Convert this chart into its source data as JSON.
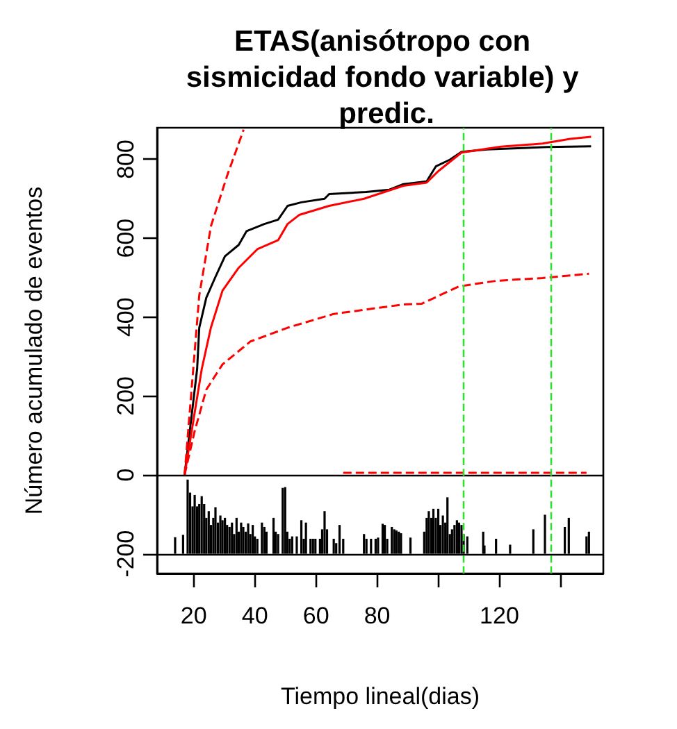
{
  "chart_data": {
    "type": "line",
    "title": "ETAS(anisótropo con sismicidad fondo variable) y predic.",
    "xlabel": "Tiempo lineal(dias)",
    "ylabel": "Número acumulado de eventos",
    "xlim": [
      8,
      154
    ],
    "ylim": [
      -250,
      880
    ],
    "xticks": [
      20,
      40,
      60,
      80,
      {
        "value": 100,
        "label": null
      },
      120,
      {
        "value": 140,
        "label": null
      }
    ],
    "yticks": [
      -200,
      0,
      200,
      400,
      600,
      800
    ],
    "grid": false,
    "marker": "none",
    "series": [
      {
        "color": "#000000",
        "line_style": "solid",
        "x": [
          17,
          21.1,
          21.8,
          24.1,
          27.1,
          30.2,
          34.7,
          37.3,
          43.1,
          47.6,
          50.7,
          55.2,
          62.8,
          64.3,
          76.4,
          84,
          88.6,
          96.2,
          99.2,
          103.8,
          107.6,
          115.9,
          135.6,
          150
        ],
        "values": [
          0,
          268,
          373,
          449,
          502,
          554,
          583,
          618,
          636,
          647,
          682,
          691,
          700,
          712,
          717,
          723,
          737,
          744,
          782,
          799,
          819,
          825,
          831,
          833
        ]
      },
      {
        "color": "#ff0000",
        "line_style": "solid",
        "x": [
          17,
          22.6,
          25.6,
          29.4,
          34.7,
          40.8,
          47.6,
          50.7,
          54.5,
          64.3,
          75.7,
          88.6,
          96.2,
          100,
          107.6,
          115.1,
          120.5,
          134.1,
          143.2,
          150
        ],
        "values": [
          0,
          268,
          373,
          467,
          525,
          572,
          595,
          636,
          659,
          682,
          700,
          733,
          741,
          770,
          817,
          826,
          832,
          840,
          852,
          857
        ]
      },
      {
        "color": "#ff0000",
        "line_style": "dashed",
        "x": [
          17,
          21.8,
          25.6,
          30.9,
          36.3
        ],
        "values": [
          0,
          455,
          630,
          758,
          875
        ]
      },
      {
        "color": "#ff0000",
        "line_style": "dashed",
        "x": [
          17,
          20.3,
          24.1,
          29.4,
          38.5,
          50.7,
          65.8,
          88.6,
          94.6,
          106.8,
          119,
          134.1,
          149.3
        ],
        "values": [
          0,
          111,
          216,
          280,
          338,
          373,
          408,
          432,
          434,
          478,
          492,
          499,
          510
        ]
      },
      {
        "color": "#ff0000",
        "line_style": "dashed",
        "x": [
          68.9,
          148.5
        ],
        "values": [
          5,
          5
        ]
      },
      {
        "type": "bar",
        "color": "#000000",
        "x": [
          13.9,
          16.5,
          18.0,
          18.8,
          19.6,
          20.3,
          21.1,
          21.8,
          22.6,
          23.4,
          24.1,
          24.9,
          25.6,
          26.4,
          27.1,
          27.9,
          28.7,
          29.4,
          30.2,
          30.9,
          31.7,
          32.5,
          33.2,
          34.0,
          34.7,
          35.5,
          36.2,
          37.0,
          37.8,
          38.5,
          39.3,
          40.0,
          40.8,
          42.3,
          43.1,
          43.8,
          46.1,
          46.8,
          47.6,
          49.1,
          49.9,
          50.6,
          51.4,
          52.2,
          53.7,
          55.2,
          56.0,
          56.7,
          58.2,
          59.0,
          59.8,
          61.3,
          62.0,
          62.8,
          63.6,
          65.8,
          66.6,
          67.7,
          68.9,
          75.7,
          76.5,
          78.0,
          79.5,
          80.3,
          81.8,
          82.5,
          83.3,
          84.8,
          85.6,
          86.3,
          87.1,
          87.8,
          90.9,
          95.4,
          96.2,
          96.9,
          97.7,
          98.4,
          99.2,
          100.0,
          100.7,
          101.5,
          102.3,
          103.0,
          103.8,
          104.5,
          105.3,
          106.1,
          106.8,
          107.6,
          108.3,
          109.5,
          114.7,
          115.1,
          118.9,
          123.5,
          131.1,
          134.9,
          141.4,
          142.7,
          148.5,
          149.3
        ],
        "values": [
          42,
          48,
          188,
          155,
          120,
          149,
          120,
          126,
          146,
          126,
          91,
          108,
          73,
          91,
          118,
          79,
          97,
          85,
          91,
          73,
          68,
          79,
          50,
          91,
          56,
          79,
          68,
          56,
          77,
          50,
          73,
          44,
          38,
          79,
          68,
          56,
          91,
          56,
          50,
          167,
          169,
          56,
          38,
          44,
          44,
          85,
          38,
          79,
          38,
          38,
          38,
          38,
          62,
          108,
          62,
          38,
          27,
          73,
          38,
          50,
          38,
          38,
          38,
          41,
          76,
          73,
          38,
          68,
          62,
          59,
          56,
          52,
          41,
          56,
          91,
          108,
          91,
          114,
          91,
          114,
          73,
          97,
          79,
          143,
          50,
          62,
          73,
          85,
          79,
          73,
          50,
          44,
          56,
          21,
          38,
          23,
          62,
          99,
          68,
          91,
          44,
          56
        ],
        "base": [
          -200,
          -200,
          -200,
          -200,
          -200,
          -200,
          -200,
          -200,
          -200,
          -200,
          -200,
          -200,
          -200,
          -200,
          -200,
          -200,
          -200,
          -200,
          -200,
          -200,
          -200,
          -200,
          -200,
          -200,
          -200,
          -200,
          -200,
          -200,
          -200,
          -200,
          -200,
          -200,
          -200,
          -200,
          -200,
          -200,
          -200,
          -200,
          -200,
          -200,
          -200,
          -200,
          -200,
          -200,
          -200,
          -200,
          -200,
          -200,
          -200,
          -200,
          -200,
          -200,
          -200,
          -200,
          -200,
          -200,
          -200,
          -200,
          -200,
          -200,
          -200,
          -200,
          -200,
          -200,
          -200,
          -200,
          -200,
          -200,
          -200,
          -200,
          -200,
          -200,
          -200,
          -200,
          -200,
          -200,
          -200,
          -200,
          -200,
          -200,
          -200,
          -200,
          -200,
          -200,
          -200,
          -200,
          -200,
          -200,
          -200,
          -200,
          -200,
          -200,
          -200,
          -200,
          -200,
          -200,
          -200,
          -200,
          -200,
          -200,
          -200,
          -200
        ]
      }
    ],
    "ref_lines": [
      {
        "axis": "y",
        "value": 0,
        "color": "#000000",
        "line_style": "solid"
      },
      {
        "axis": "y",
        "value": -200,
        "color": "#000000",
        "line_style": "solid"
      },
      {
        "axis": "x",
        "value": 108,
        "color": "#33dd33",
        "line_style": "dashed"
      },
      {
        "axis": "x",
        "value": 137,
        "color": "#33dd33",
        "line_style": "dashed"
      }
    ]
  }
}
